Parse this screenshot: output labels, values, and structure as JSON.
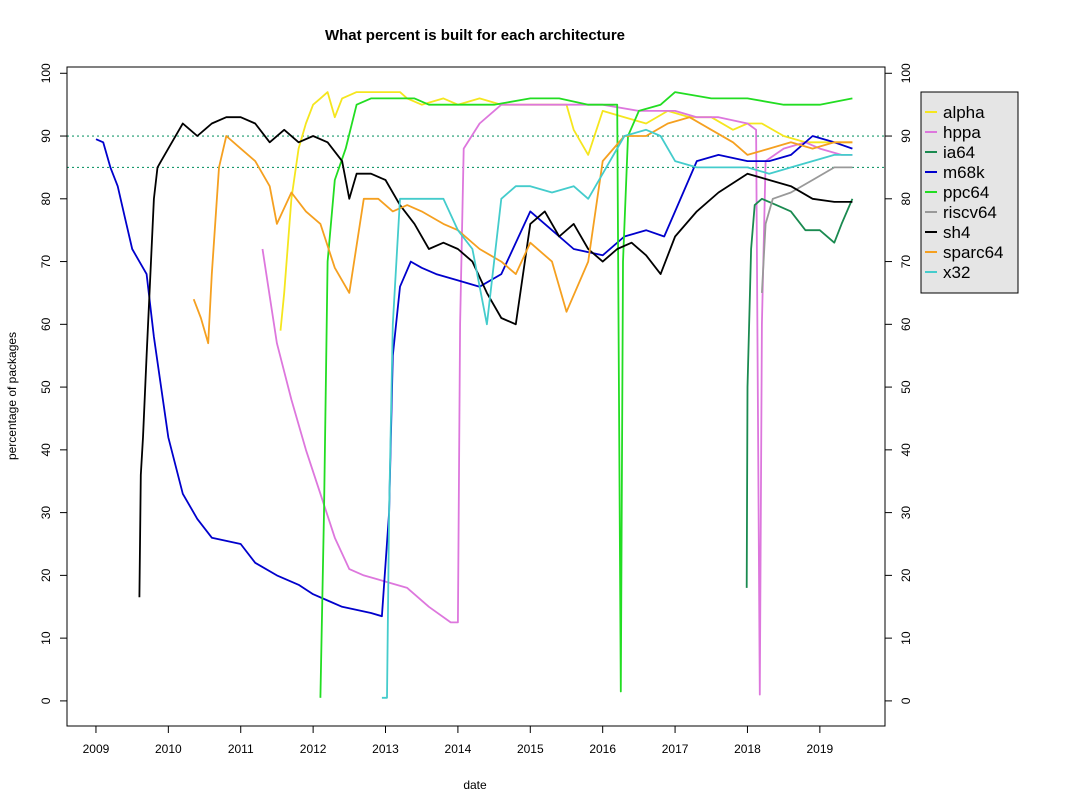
{
  "chart_data": {
    "type": "line",
    "title": "What percent is built for each architecture",
    "xlabel": "date",
    "ylabel": "percentage of packages",
    "xlim": [
      2008.6,
      2019.9
    ],
    "ylim": [
      -4,
      101
    ],
    "x_ticks": [
      2009,
      2010,
      2011,
      2012,
      2013,
      2014,
      2015,
      2016,
      2017,
      2018,
      2019
    ],
    "x_tick_labels": [
      "2009",
      "2010",
      "2011",
      "2012",
      "2013",
      "2014",
      "2015",
      "2016",
      "2017",
      "2018",
      "2019"
    ],
    "y_ticks": [
      0,
      10,
      20,
      30,
      40,
      50,
      60,
      70,
      80,
      90,
      100
    ],
    "y_tick_labels": [
      "0",
      "10",
      "20",
      "30",
      "40",
      "50",
      "60",
      "70",
      "80",
      "90",
      "100"
    ],
    "y_axis_right": true,
    "reference_lines": [
      {
        "y": 90,
        "color": "#1a9b6e",
        "style": "dotted"
      },
      {
        "y": 85,
        "color": "#1a9b6e",
        "style": "dotted"
      }
    ],
    "grid": false,
    "legend_position": "right",
    "background": "#e5e5e5",
    "series": [
      {
        "name": "alpha",
        "color": "#f5e61e",
        "x": [
          2011.55,
          2011.6,
          2011.7,
          2011.8,
          2011.9,
          2012.0,
          2012.1,
          2012.2,
          2012.3,
          2012.4,
          2012.6,
          2012.8,
          2013.0,
          2013.2,
          2013.3,
          2013.5,
          2013.8,
          2014.0,
          2014.3,
          2014.6,
          2015.0,
          2015.3,
          2015.5,
          2015.6,
          2015.8,
          2016.0,
          2016.3,
          2016.6,
          2016.9,
          2017.2,
          2017.5,
          2017.8,
          2018.0,
          2018.2,
          2018.5,
          2018.8,
          2019.0,
          2019.3,
          2019.45
        ],
        "y": [
          59,
          65,
          80,
          88,
          92,
          95,
          96,
          97,
          93,
          96,
          97,
          97,
          97,
          97,
          96,
          95,
          96,
          95,
          96,
          95,
          95,
          95,
          95,
          91,
          87,
          94,
          93,
          92,
          94,
          93,
          93,
          91,
          92,
          92,
          90,
          89,
          89,
          89,
          89
        ]
      },
      {
        "name": "hppa",
        "color": "#dd77dd",
        "x": [
          2011.3,
          2011.5,
          2011.7,
          2011.9,
          2012.1,
          2012.3,
          2012.5,
          2012.7,
          2013.0,
          2013.3,
          2013.6,
          2013.9,
          2014.0,
          2014.03,
          2014.08,
          2014.3,
          2014.6,
          2015.0,
          2015.5,
          2016.0,
          2016.5,
          2017.0,
          2017.3,
          2017.6,
          2018.0,
          2018.12,
          2018.17,
          2018.2,
          2018.25,
          2018.5,
          2018.8,
          2019.0,
          2019.3,
          2019.45
        ],
        "y": [
          72,
          57,
          48,
          40,
          33,
          26,
          21,
          20,
          19,
          18,
          15,
          12.5,
          12.5,
          60,
          88,
          92,
          95,
          95,
          95,
          95,
          94,
          94,
          93,
          93,
          92,
          91,
          1,
          60,
          86,
          88,
          89,
          88,
          87,
          87
        ]
      },
      {
        "name": "ia64",
        "color": "#1a8a50",
        "x": [
          2017.99,
          2018.0,
          2018.05,
          2018.1,
          2018.2,
          2018.4,
          2018.6,
          2018.8,
          2019.0,
          2019.2,
          2019.3,
          2019.45
        ],
        "y": [
          18,
          50,
          72,
          79,
          80,
          79,
          78,
          75,
          75,
          73,
          76,
          80
        ]
      },
      {
        "name": "m68k",
        "color": "#0000cc",
        "x": [
          2009.0,
          2009.1,
          2009.2,
          2009.3,
          2009.4,
          2009.5,
          2009.6,
          2009.7,
          2009.8,
          2009.9,
          2010.0,
          2010.2,
          2010.4,
          2010.6,
          2010.8,
          2011.0,
          2011.2,
          2011.5,
          2011.8,
          2012.0,
          2012.2,
          2012.4,
          2012.6,
          2012.8,
          2012.95,
          2013.05,
          2013.1,
          2013.2,
          2013.35,
          2013.5,
          2013.7,
          2014.0,
          2014.3,
          2014.6,
          2015.0,
          2015.3,
          2015.6,
          2016.0,
          2016.3,
          2016.6,
          2016.85,
          2017.0,
          2017.3,
          2017.6,
          2018.0,
          2018.3,
          2018.6,
          2018.9,
          2019.2,
          2019.45
        ],
        "y": [
          89.5,
          89,
          85,
          82,
          77,
          72,
          70,
          68,
          58,
          50,
          42,
          33,
          29,
          26,
          25.5,
          25,
          22,
          20,
          18.5,
          17,
          16,
          15,
          14.5,
          14,
          13.5,
          30,
          55,
          66,
          70,
          69,
          68,
          67,
          66,
          68,
          78,
          75,
          72,
          71,
          74,
          75,
          74,
          78,
          86,
          87,
          86,
          86,
          87,
          90,
          89,
          88
        ]
      },
      {
        "name": "ppc64",
        "color": "#22dd22",
        "x": [
          2012.1,
          2012.15,
          2012.2,
          2012.3,
          2012.45,
          2012.6,
          2012.8,
          2013.0,
          2013.2,
          2013.4,
          2013.6,
          2014.0,
          2014.5,
          2015.0,
          2015.4,
          2015.8,
          2016.2,
          2016.25,
          2016.28,
          2016.35,
          2016.5,
          2016.8,
          2017.0,
          2017.5,
          2018.0,
          2018.5,
          2019.0,
          2019.45
        ],
        "y": [
          0.5,
          30,
          70,
          83,
          88,
          95,
          96,
          96,
          96,
          96,
          95,
          95,
          95,
          96,
          96,
          95,
          95,
          1.5,
          70,
          90,
          94,
          95,
          97,
          96,
          96,
          95,
          95,
          96
        ]
      },
      {
        "name": "riscv64",
        "color": "#999999",
        "x": [
          2018.2,
          2018.25,
          2018.35,
          2018.6,
          2018.9,
          2019.2,
          2019.45
        ],
        "y": [
          65,
          76,
          80,
          81,
          83,
          85,
          85
        ]
      },
      {
        "name": "sh4",
        "color": "#000000",
        "x": [
          2009.6,
          2009.62,
          2009.65,
          2009.7,
          2009.8,
          2009.85,
          2009.9,
          2010.0,
          2010.2,
          2010.4,
          2010.6,
          2010.8,
          2011.0,
          2011.2,
          2011.4,
          2011.6,
          2011.8,
          2012.0,
          2012.2,
          2012.4,
          2012.5,
          2012.6,
          2012.8,
          2013.0,
          2013.2,
          2013.4,
          2013.6,
          2013.8,
          2014.0,
          2014.2,
          2014.4,
          2014.6,
          2014.8,
          2015.0,
          2015.2,
          2015.4,
          2015.6,
          2015.8,
          2016.0,
          2016.2,
          2016.4,
          2016.6,
          2016.8,
          2017.0,
          2017.3,
          2017.6,
          2018.0,
          2018.3,
          2018.6,
          2018.9,
          2019.2,
          2019.45
        ],
        "y": [
          16.5,
          36,
          42,
          55,
          80,
          85,
          86,
          88,
          92,
          90,
          92,
          93,
          93,
          92,
          89,
          91,
          89,
          90,
          89,
          86,
          80,
          84,
          84,
          83,
          79,
          76,
          72,
          73,
          72,
          70,
          65,
          61,
          60,
          76,
          78,
          74,
          76,
          72,
          70,
          72,
          73,
          71,
          68,
          74,
          78,
          81,
          84,
          83,
          82,
          80,
          79.5,
          79.5
        ]
      },
      {
        "name": "sparc64",
        "color": "#f5a020",
        "x": [
          2010.35,
          2010.45,
          2010.55,
          2010.6,
          2010.7,
          2010.8,
          2011.0,
          2011.2,
          2011.4,
          2011.5,
          2011.7,
          2011.9,
          2012.1,
          2012.3,
          2012.5,
          2012.7,
          2012.9,
          2013.1,
          2013.3,
          2013.5,
          2013.8,
          2014.0,
          2014.3,
          2014.6,
          2014.8,
          2015.0,
          2015.3,
          2015.5,
          2015.8,
          2016.0,
          2016.3,
          2016.6,
          2016.9,
          2017.2,
          2017.5,
          2017.8,
          2018.0,
          2018.3,
          2018.6,
          2018.9,
          2019.2,
          2019.45
        ],
        "y": [
          64,
          61,
          57,
          68,
          85,
          90,
          88,
          86,
          82,
          76,
          81,
          78,
          76,
          69,
          65,
          80,
          80,
          78,
          79,
          78,
          76,
          75,
          72,
          70,
          68,
          73,
          70,
          62,
          70,
          86,
          90,
          90,
          92,
          93,
          91,
          89,
          87,
          88,
          89,
          88,
          89,
          89
        ]
      },
      {
        "name": "x32",
        "color": "#44cccc",
        "x": [
          2012.95,
          2013.02,
          2013.05,
          2013.1,
          2013.2,
          2013.4,
          2013.6,
          2013.8,
          2014.0,
          2014.2,
          2014.4,
          2014.5,
          2014.6,
          2014.8,
          2015.0,
          2015.3,
          2015.6,
          2015.8,
          2016.0,
          2016.3,
          2016.6,
          2016.8,
          2017.0,
          2017.3,
          2017.6,
          2018.0,
          2018.3,
          2018.6,
          2018.9,
          2019.2,
          2019.45
        ],
        "y": [
          0.5,
          0.5,
          30,
          60,
          80,
          80,
          80,
          80,
          75,
          72,
          60,
          70,
          80,
          82,
          82,
          81,
          82,
          80,
          84,
          90,
          91,
          90,
          86,
          85,
          85,
          85,
          84,
          85,
          86,
          87,
          87
        ]
      }
    ]
  }
}
